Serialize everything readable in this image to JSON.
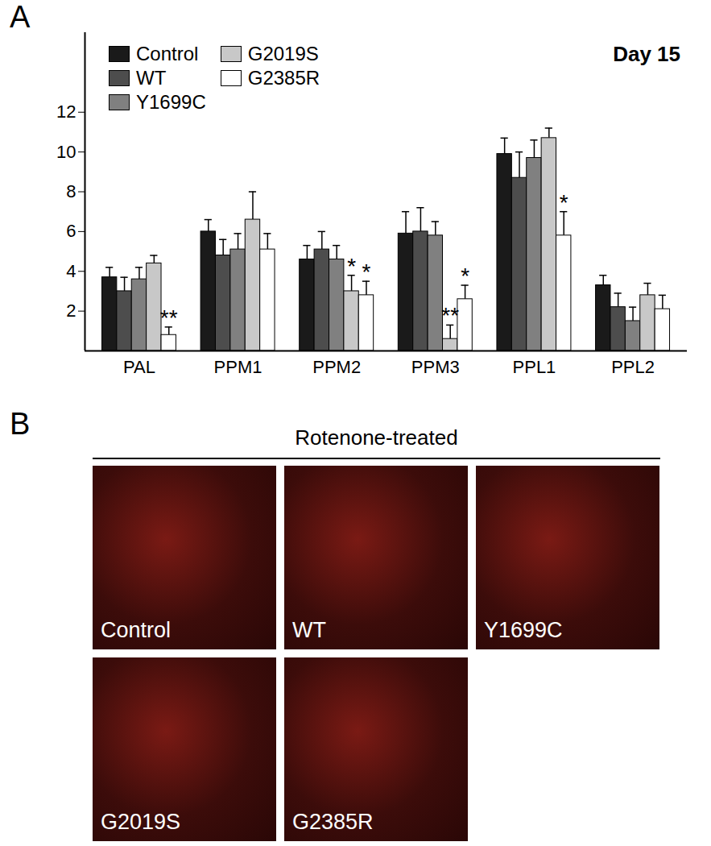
{
  "panel_labels": [
    "A",
    "B"
  ],
  "chart_data": {
    "type": "bar",
    "annotation": "Day 15",
    "categories": [
      "PAL",
      "PPM1",
      "PPM2",
      "PPM3",
      "PPL1",
      "PPL2"
    ],
    "series": [
      {
        "name": "Control",
        "color": "#1a1a1a",
        "values": [
          3.7,
          6.0,
          4.6,
          5.9,
          9.9,
          3.3
        ],
        "errors": [
          0.5,
          0.6,
          0.7,
          1.1,
          0.8,
          0.5
        ],
        "significance": [
          null,
          null,
          null,
          null,
          null,
          null
        ]
      },
      {
        "name": "WT",
        "color": "#4d4d4d",
        "values": [
          3.0,
          4.8,
          5.1,
          6.0,
          8.7,
          2.2
        ],
        "errors": [
          0.7,
          0.8,
          0.9,
          1.2,
          1.3,
          0.7
        ],
        "significance": [
          null,
          null,
          null,
          null,
          null,
          null
        ]
      },
      {
        "name": "Y1699C",
        "color": "#808080",
        "values": [
          3.6,
          5.1,
          4.6,
          5.8,
          9.7,
          1.5
        ],
        "errors": [
          0.6,
          0.8,
          0.7,
          0.7,
          0.9,
          0.7
        ],
        "significance": [
          null,
          null,
          null,
          null,
          null,
          null
        ]
      },
      {
        "name": "G2019S",
        "color": "#c8c8c8",
        "values": [
          4.4,
          6.6,
          3.0,
          0.6,
          10.7,
          2.8
        ],
        "errors": [
          0.4,
          1.4,
          0.8,
          0.7,
          0.5,
          0.6
        ],
        "significance": [
          null,
          null,
          "*",
          "**",
          null,
          null
        ]
      },
      {
        "name": "G2385R",
        "color": "#ffffff",
        "values": [
          0.8,
          5.1,
          2.8,
          2.6,
          5.8,
          2.1
        ],
        "errors": [
          0.4,
          0.8,
          0.7,
          0.7,
          1.2,
          0.7
        ],
        "significance": [
          "**",
          null,
          "*",
          "*",
          "*",
          null
        ]
      }
    ],
    "ylim": [
      0,
      16
    ],
    "yticks": [
      2,
      4,
      6,
      8,
      10,
      12
    ],
    "legend": "top-left",
    "grid": false
  },
  "panel_b": {
    "title": "Rotenone-treated",
    "images": [
      "Control",
      "WT",
      "Y1699C",
      "G2019S",
      "G2385R"
    ]
  }
}
